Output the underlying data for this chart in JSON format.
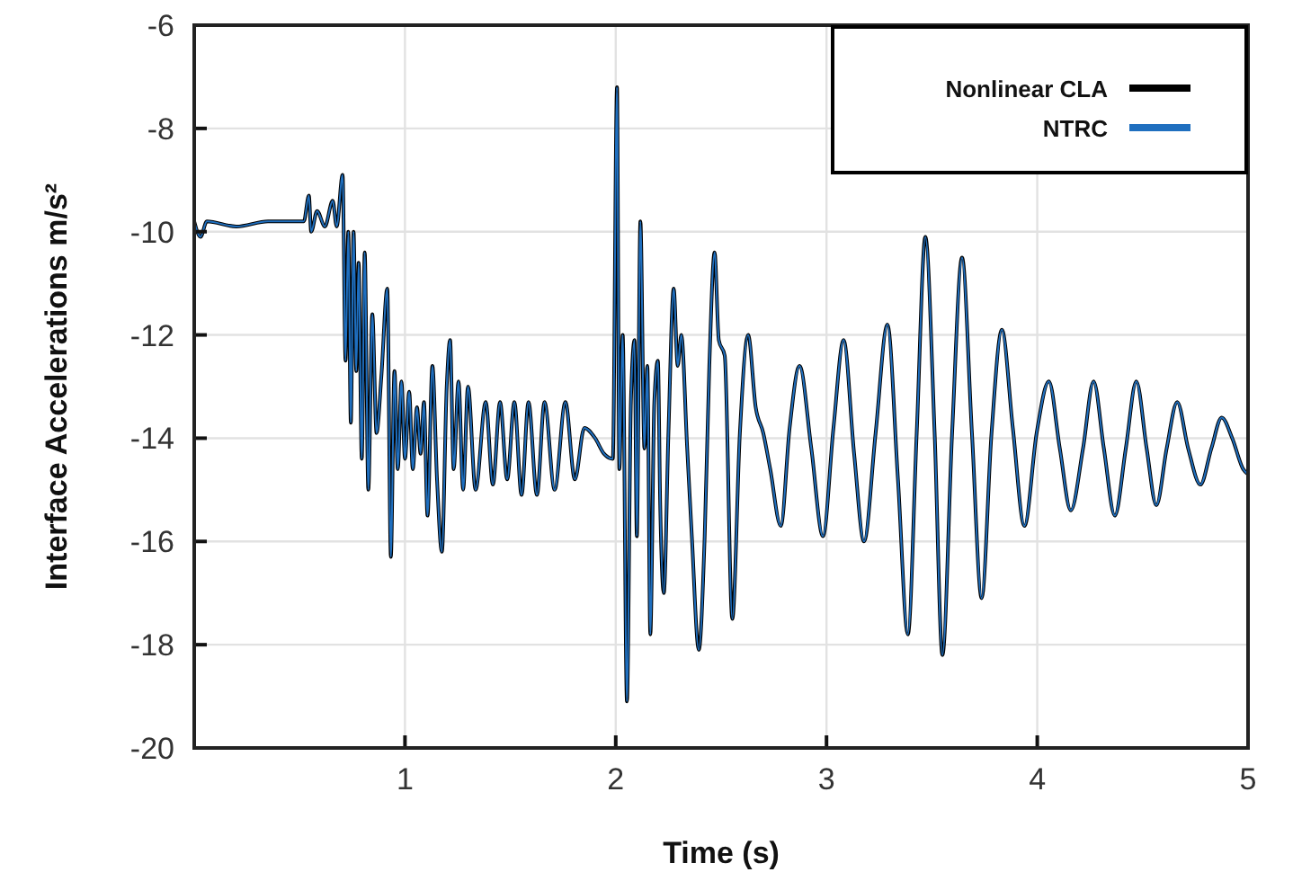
{
  "chart_data": {
    "type": "line",
    "xlabel": "Time (s)",
    "ylabel": "Interface Accelerations m/s²",
    "xlim": [
      0,
      5
    ],
    "xticks": [
      1,
      2,
      3,
      4,
      5
    ],
    "ylim": [
      -20,
      -6
    ],
    "yticks": [
      -20,
      -18,
      -16,
      -14,
      -12,
      -10,
      -8,
      -6
    ],
    "grid": true,
    "legend": "top right",
    "x": [
      0,
      0.03,
      0.06,
      0.2,
      0.35,
      0.5,
      0.52,
      0.544,
      0.555,
      0.583,
      0.62,
      0.657,
      0.676,
      0.704,
      0.718,
      0.731,
      0.743,
      0.756,
      0.769,
      0.78,
      0.795,
      0.809,
      0.826,
      0.845,
      0.865,
      0.888,
      0.916,
      0.933,
      0.95,
      0.966,
      0.983,
      1.0,
      1.02,
      1.037,
      1.057,
      1.074,
      1.09,
      1.107,
      1.13,
      1.152,
      1.175,
      1.198,
      1.214,
      1.231,
      1.254,
      1.276,
      1.299,
      1.335,
      1.383,
      1.417,
      1.451,
      1.485,
      1.519,
      1.553,
      1.586,
      1.626,
      1.662,
      1.71,
      1.761,
      1.806,
      1.851,
      1.902,
      1.944,
      1.986,
      2.006,
      2.017,
      2.033,
      2.053,
      2.072,
      2.089,
      2.1,
      2.117,
      2.136,
      2.15,
      2.164,
      2.183,
      2.2,
      2.211,
      2.228,
      2.25,
      2.275,
      2.294,
      2.311,
      2.339,
      2.361,
      2.394,
      2.422,
      2.444,
      2.469,
      2.489,
      2.517,
      2.553,
      2.589,
      2.628,
      2.664,
      2.7,
      2.733,
      2.783,
      2.825,
      2.872,
      2.928,
      2.983,
      3.033,
      3.081,
      3.131,
      3.178,
      3.233,
      3.289,
      3.339,
      3.386,
      3.428,
      3.469,
      3.513,
      3.55,
      3.596,
      3.643,
      3.69,
      3.736,
      3.783,
      3.832,
      3.884,
      3.939,
      3.997,
      4.055,
      4.107,
      4.159,
      4.217,
      4.267,
      4.316,
      4.368,
      4.42,
      4.47,
      4.519,
      4.565,
      4.614,
      4.664,
      4.716,
      4.774,
      4.826,
      4.875,
      4.925,
      4.977,
      5.0
    ],
    "series": [
      {
        "name": "Nonlinear CLA",
        "color": "#000000",
        "values": [
          -9.8,
          -10.1,
          -9.8,
          -9.9,
          -9.8,
          -9.8,
          -9.8,
          -9.3,
          -10.0,
          -9.6,
          -9.9,
          -9.4,
          -9.9,
          -8.9,
          -12.5,
          -10.0,
          -13.7,
          -10.0,
          -12.7,
          -10.6,
          -14.4,
          -10.4,
          -15.0,
          -11.6,
          -13.9,
          -12.8,
          -11.1,
          -16.3,
          -12.7,
          -14.6,
          -12.9,
          -14.4,
          -13.1,
          -14.6,
          -13.4,
          -14.3,
          -13.3,
          -15.5,
          -12.6,
          -14.8,
          -16.2,
          -13.0,
          -12.1,
          -14.6,
          -12.9,
          -15.0,
          -13.0,
          -15.0,
          -13.3,
          -14.9,
          -13.3,
          -14.8,
          -13.3,
          -15.1,
          -13.3,
          -15.1,
          -13.3,
          -15.0,
          -13.3,
          -14.8,
          -13.8,
          -14.0,
          -14.3,
          -14.4,
          -7.2,
          -14.6,
          -12.0,
          -19.1,
          -13.3,
          -12.1,
          -15.9,
          -9.8,
          -14.2,
          -12.6,
          -17.8,
          -13.3,
          -12.5,
          -15.3,
          -17.0,
          -13.9,
          -11.1,
          -12.6,
          -12.0,
          -14.2,
          -15.9,
          -18.1,
          -15.9,
          -12.6,
          -10.4,
          -12.1,
          -12.4,
          -17.5,
          -13.9,
          -12.0,
          -13.4,
          -13.9,
          -14.6,
          -15.7,
          -13.8,
          -12.6,
          -14.2,
          -15.9,
          -13.8,
          -12.1,
          -14.3,
          -16.0,
          -13.9,
          -11.8,
          -14.8,
          -17.8,
          -13.9,
          -10.1,
          -13.9,
          -18.2,
          -13.9,
          -10.5,
          -13.9,
          -17.1,
          -13.9,
          -11.9,
          -13.8,
          -15.7,
          -13.9,
          -12.9,
          -14.2,
          -15.4,
          -14.2,
          -12.9,
          -14.2,
          -15.5,
          -14.2,
          -12.9,
          -14.2,
          -15.3,
          -14.2,
          -13.3,
          -14.2,
          -14.9,
          -14.2,
          -13.6,
          -14.0,
          -14.6,
          -14.7
        ]
      },
      {
        "name": "NTRC",
        "color": "#1f6fbf",
        "values": [
          -9.8,
          -10.1,
          -9.8,
          -9.9,
          -9.8,
          -9.8,
          -9.8,
          -9.3,
          -10.0,
          -9.6,
          -9.9,
          -9.4,
          -9.9,
          -8.9,
          -12.5,
          -10.0,
          -13.7,
          -10.0,
          -12.7,
          -10.6,
          -14.4,
          -10.4,
          -15.0,
          -11.6,
          -13.9,
          -12.8,
          -11.1,
          -16.3,
          -12.7,
          -14.6,
          -12.9,
          -14.4,
          -13.1,
          -14.6,
          -13.4,
          -14.3,
          -13.3,
          -15.5,
          -12.6,
          -14.8,
          -16.2,
          -13.0,
          -12.1,
          -14.6,
          -12.9,
          -15.0,
          -13.0,
          -15.0,
          -13.3,
          -14.9,
          -13.3,
          -14.8,
          -13.3,
          -15.1,
          -13.3,
          -15.1,
          -13.3,
          -15.0,
          -13.3,
          -14.8,
          -13.8,
          -14.0,
          -14.3,
          -14.4,
          -7.2,
          -14.6,
          -12.0,
          -19.1,
          -13.3,
          -12.1,
          -15.9,
          -9.8,
          -14.2,
          -12.6,
          -17.8,
          -13.3,
          -12.5,
          -15.3,
          -17.0,
          -13.9,
          -11.1,
          -12.6,
          -12.0,
          -14.2,
          -15.9,
          -18.1,
          -15.9,
          -12.6,
          -10.4,
          -12.1,
          -12.4,
          -17.5,
          -13.9,
          -12.0,
          -13.4,
          -13.9,
          -14.6,
          -15.7,
          -13.8,
          -12.6,
          -14.2,
          -15.9,
          -13.8,
          -12.1,
          -14.3,
          -16.0,
          -13.9,
          -11.8,
          -14.8,
          -17.8,
          -13.9,
          -10.1,
          -13.9,
          -18.2,
          -13.9,
          -10.5,
          -13.9,
          -17.1,
          -13.9,
          -11.9,
          -13.8,
          -15.7,
          -13.9,
          -12.9,
          -14.2,
          -15.4,
          -14.2,
          -12.9,
          -14.2,
          -15.5,
          -14.2,
          -12.9,
          -14.2,
          -15.3,
          -14.2,
          -13.3,
          -14.2,
          -14.9,
          -14.2,
          -13.6,
          -14.0,
          -14.6,
          -14.7
        ]
      }
    ]
  }
}
